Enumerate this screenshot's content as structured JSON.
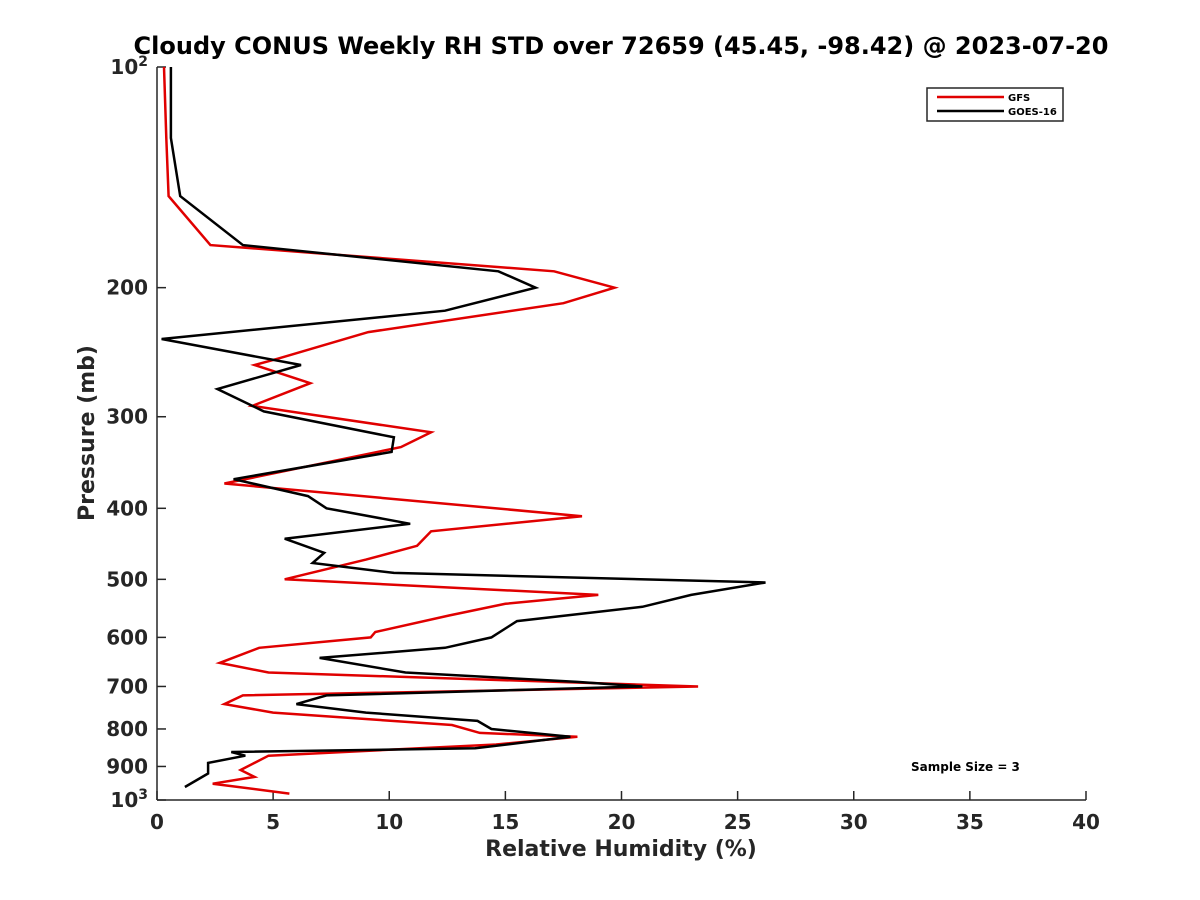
{
  "chart_data": {
    "type": "line",
    "title": "Cloudy CONUS Weekly RH STD over 72659 (45.45, -98.42) @ 2023-07-20",
    "xlabel": "Relative Humidity (%)",
    "ylabel": "Pressure (mb)",
    "xlim": [
      0,
      40
    ],
    "ylim": [
      100,
      1000
    ],
    "y_scale": "log",
    "y_reversed": true,
    "x_ticks": [
      "0",
      "5",
      "10",
      "15",
      "20",
      "25",
      "30",
      "35",
      "40"
    ],
    "y_ticks": [
      {
        "value": 100,
        "base": "10",
        "exp": "2"
      },
      {
        "value": 200,
        "label": "200"
      },
      {
        "value": 300,
        "label": "300"
      },
      {
        "value": 400,
        "label": "400"
      },
      {
        "value": 500,
        "label": "500"
      },
      {
        "value": 600,
        "label": "600"
      },
      {
        "value": 700,
        "label": "700"
      },
      {
        "value": 800,
        "label": "800"
      },
      {
        "value": 900,
        "label": "900"
      },
      {
        "value": 1000,
        "base": "10",
        "exp": "3"
      }
    ],
    "grid": false,
    "legend_position": "top-right",
    "annotation": "Sample Size = 3",
    "series": [
      {
        "name": "GFS",
        "color": "#e00000",
        "points": [
          [
            0.3,
            100
          ],
          [
            0.4,
            125
          ],
          [
            0.5,
            150
          ],
          [
            2.3,
            175
          ],
          [
            17.1,
            190
          ],
          [
            19.7,
            200
          ],
          [
            17.5,
            210
          ],
          [
            9.1,
            230
          ],
          [
            5.2,
            250
          ],
          [
            4.2,
            255
          ],
          [
            6.6,
            270
          ],
          [
            4.1,
            290
          ],
          [
            11.8,
            315
          ],
          [
            10.5,
            330
          ],
          [
            2.9,
            370
          ],
          [
            18.3,
            410
          ],
          [
            11.8,
            430
          ],
          [
            11.2,
            450
          ],
          [
            9.0,
            470
          ],
          [
            5.5,
            500
          ],
          [
            19.0,
            525
          ],
          [
            15.0,
            540
          ],
          [
            12.6,
            560
          ],
          [
            9.4,
            590
          ],
          [
            9.2,
            600
          ],
          [
            4.4,
            620
          ],
          [
            2.7,
            650
          ],
          [
            4.8,
            670
          ],
          [
            23.3,
            700
          ],
          [
            3.7,
            720
          ],
          [
            2.9,
            740
          ],
          [
            5.0,
            760
          ],
          [
            12.7,
            790
          ],
          [
            13.9,
            810
          ],
          [
            18.1,
            820
          ],
          [
            14.6,
            840
          ],
          [
            4.8,
            870
          ],
          [
            4.2,
            890
          ],
          [
            3.6,
            910
          ],
          [
            4.2,
            930
          ],
          [
            2.4,
            950
          ],
          [
            5.7,
            980
          ]
        ]
      },
      {
        "name": "GOES-16",
        "color": "#000000",
        "points": [
          [
            0.6,
            100
          ],
          [
            0.6,
            125
          ],
          [
            1.0,
            150
          ],
          [
            3.7,
            175
          ],
          [
            14.7,
            190
          ],
          [
            16.3,
            200
          ],
          [
            12.4,
            215
          ],
          [
            0.2,
            235
          ],
          [
            6.2,
            255
          ],
          [
            2.6,
            275
          ],
          [
            4.6,
            295
          ],
          [
            10.2,
            320
          ],
          [
            10.1,
            335
          ],
          [
            3.3,
            365
          ],
          [
            6.5,
            385
          ],
          [
            7.3,
            400
          ],
          [
            10.9,
            420
          ],
          [
            5.5,
            440
          ],
          [
            7.2,
            460
          ],
          [
            6.7,
            475
          ],
          [
            10.2,
            490
          ],
          [
            26.2,
            505
          ],
          [
            23.0,
            525
          ],
          [
            20.9,
            545
          ],
          [
            15.5,
            570
          ],
          [
            14.4,
            600
          ],
          [
            12.4,
            620
          ],
          [
            7.0,
            640
          ],
          [
            10.7,
            670
          ],
          [
            18.1,
            690
          ],
          [
            20.9,
            700
          ],
          [
            7.3,
            720
          ],
          [
            6.0,
            740
          ],
          [
            9.0,
            760
          ],
          [
            13.8,
            780
          ],
          [
            14.4,
            800
          ],
          [
            17.8,
            820
          ],
          [
            13.7,
            850
          ],
          [
            3.2,
            860
          ],
          [
            3.8,
            870
          ],
          [
            2.2,
            890
          ],
          [
            2.2,
            920
          ],
          [
            1.2,
            960
          ]
        ]
      }
    ]
  }
}
